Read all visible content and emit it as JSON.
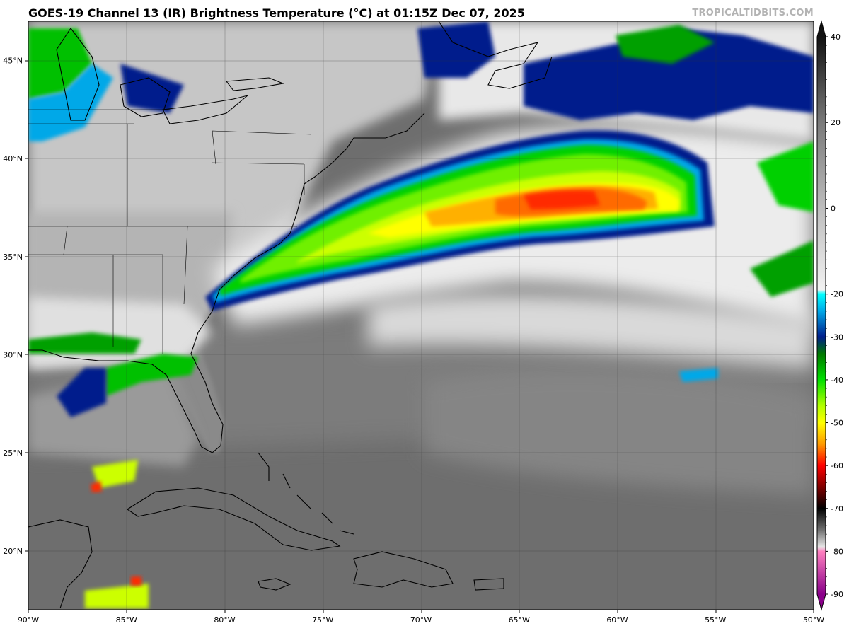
{
  "header": {
    "title": "GOES-19 Channel 13 (IR) Brightness Temperature (°C) at 01:15Z Dec 07, 2025",
    "credit": "TROPICALTIDBITS.COM"
  },
  "map": {
    "extent": {
      "lon": [
        -90,
        -50
      ],
      "lat": [
        17,
        47
      ]
    },
    "lon_labels": [
      "90°W",
      "85°W",
      "80°W",
      "75°W",
      "70°W",
      "65°W",
      "60°W",
      "55°W",
      "50°W"
    ],
    "lat_labels": [
      "20°N",
      "25°N",
      "30°N",
      "35°N",
      "40°N",
      "45°N"
    ]
  },
  "colorbar": {
    "range": [
      -90,
      40
    ],
    "tick_labels": [
      "40",
      "20",
      "0",
      "-20",
      "-30",
      "-40",
      "-50",
      "-60",
      "-70",
      "-80",
      "-90"
    ],
    "tick_values": [
      40,
      20,
      0,
      -20,
      -30,
      -40,
      -50,
      -60,
      -70,
      -80,
      -90
    ],
    "stops": [
      {
        "t": 40,
        "color": "#111111"
      },
      {
        "t": 20,
        "color": "#7a7a7a"
      },
      {
        "t": 0,
        "color": "#bdbdbd"
      },
      {
        "t": -19,
        "color": "#f2f2f2"
      },
      {
        "t": -20,
        "color": "#00ffff"
      },
      {
        "t": -24,
        "color": "#00a8e8"
      },
      {
        "t": -30,
        "color": "#001e8c"
      },
      {
        "t": -34,
        "color": "#007a00"
      },
      {
        "t": -40,
        "color": "#00e000"
      },
      {
        "t": -46,
        "color": "#b0ff00"
      },
      {
        "t": -50,
        "color": "#ffff00"
      },
      {
        "t": -55,
        "color": "#ff9a00"
      },
      {
        "t": -60,
        "color": "#ff0000"
      },
      {
        "t": -65,
        "color": "#800000"
      },
      {
        "t": -70,
        "color": "#000000"
      },
      {
        "t": -75,
        "color": "#707070"
      },
      {
        "t": -79,
        "color": "#e6e6e6"
      },
      {
        "t": -80,
        "color": "#ff80c0"
      },
      {
        "t": -90,
        "color": "#8a008a"
      }
    ]
  }
}
